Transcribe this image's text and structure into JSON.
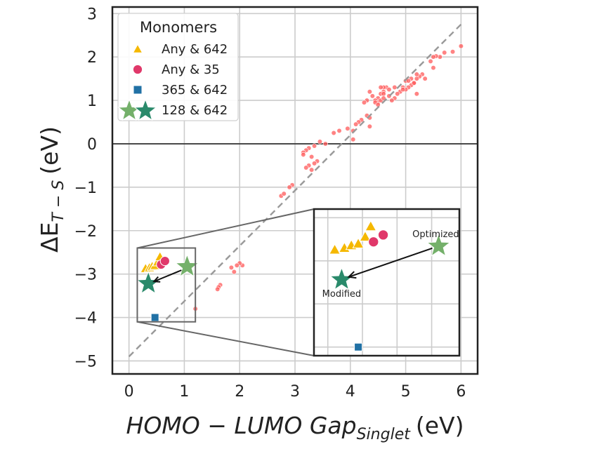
{
  "chart_data": {
    "type": "scatter",
    "title": "",
    "xlabel_main": "HOMO − LUMO Gap",
    "xlabel_sub": "Singlet",
    "xlabel_unit": "(eV)",
    "ylabel_main": "ΔE",
    "ylabel_sub": "T − S",
    "ylabel_unit": "(eV)",
    "xlim": [
      -0.3,
      6.3
    ],
    "ylim": [
      -5.3,
      3.15
    ],
    "xticks": [
      "0",
      "1",
      "2",
      "3",
      "4",
      "5",
      "6"
    ],
    "yticks": [
      "3",
      "2",
      "1",
      "0",
      "−1",
      "−2",
      "−3",
      "−4",
      "−5"
    ],
    "grid": true,
    "legend": {
      "title": "Monomers",
      "placement": "top-left",
      "entries": [
        {
          "label": "Any & 642",
          "marker": "triangle",
          "color": "#f5b800"
        },
        {
          "label": "Any & 35",
          "marker": "circle",
          "color": "#e0386a"
        },
        {
          "label": "365 & 642",
          "marker": "square",
          "color": "#2171a5"
        },
        {
          "label": "128 & 642",
          "marker": "star",
          "colors": [
            "#74b06a",
            "#2a8a6b"
          ]
        }
      ]
    },
    "reference_line": {
      "style": "dashed",
      "color": "#999999",
      "points": [
        [
          0,
          -4.9
        ],
        [
          6,
          2.75
        ]
      ]
    },
    "background_points": {
      "color": "#ff5a5a",
      "x": [
        6.0,
        5.85,
        5.7,
        5.62,
        5.55,
        5.5,
        5.45,
        5.5,
        5.3,
        5.35,
        5.25,
        5.2,
        5.15,
        5.1,
        5.2,
        5.05,
        5.0,
        4.95,
        4.9,
        5.0,
        5.1,
        5.15,
        5.2,
        4.85,
        4.8,
        4.75,
        4.7,
        4.65,
        4.6,
        4.55,
        4.5,
        4.45,
        4.5,
        4.55,
        4.6,
        4.4,
        4.35,
        4.3,
        4.25,
        4.55,
        4.6,
        4.7,
        4.8,
        4.95,
        5.05,
        4.45,
        4.5,
        4.6,
        4.3,
        4.35,
        4.2,
        4.15,
        4.1,
        4.05,
        3.95,
        3.8,
        3.7,
        4.05,
        4.35,
        3.55,
        3.45,
        3.35,
        3.25,
        3.2,
        3.15,
        3.3,
        3.4,
        3.35,
        3.25,
        3.2,
        3.3,
        3.15,
        2.95,
        2.9,
        2.75,
        2.8,
        2.05,
        2.0,
        1.95,
        1.9,
        1.65,
        1.62,
        1.6,
        1.85,
        1.2
      ],
      "y": [
        2.25,
        2.12,
        2.1,
        2.0,
        2.02,
        2.0,
        1.9,
        1.75,
        1.6,
        1.5,
        1.55,
        1.5,
        1.4,
        1.35,
        1.15,
        1.3,
        1.25,
        1.3,
        1.2,
        1.45,
        1.5,
        1.4,
        1.6,
        1.15,
        1.05,
        1.0,
        1.1,
        1.3,
        1.2,
        1.15,
        1.05,
        1.0,
        0.95,
        1.0,
        1.3,
        1.1,
        1.2,
        1.0,
        0.95,
        1.3,
        1.15,
        1.25,
        1.3,
        1.25,
        1.45,
        0.95,
        0.9,
        1.05,
        0.65,
        0.6,
        0.55,
        0.5,
        0.45,
        0.3,
        0.35,
        0.3,
        0.25,
        0.1,
        0.4,
        0.0,
        0.05,
        -0.05,
        -0.1,
        -0.15,
        -0.2,
        -0.3,
        -0.4,
        -0.45,
        -0.5,
        -0.55,
        -0.6,
        -0.25,
        -0.95,
        -1.0,
        -1.2,
        -1.15,
        -2.8,
        -2.75,
        -2.8,
        -2.95,
        -3.25,
        -3.3,
        -3.35,
        -2.85,
        -3.8
      ]
    },
    "series": [
      {
        "name": "Any & 642",
        "marker": "triangle",
        "color": "#f5b800",
        "x": [
          0.3,
          0.37,
          0.42,
          0.47,
          0.52,
          0.56
        ],
        "y": [
          -2.87,
          -2.85,
          -2.82,
          -2.8,
          -2.72,
          -2.6
        ]
      },
      {
        "name": "Any & 35",
        "marker": "circle",
        "color": "#e0386a",
        "x": [
          0.58,
          0.65
        ],
        "y": [
          -2.78,
          -2.7
        ]
      },
      {
        "name": "365 & 642",
        "marker": "square",
        "color": "#2171a5",
        "x": [
          0.47
        ],
        "y": [
          -4.0
        ]
      },
      {
        "name": "128 & 642 (Optimized)",
        "marker": "star",
        "color": "#74b06a",
        "x": [
          1.05
        ],
        "y": [
          -2.83
        ]
      },
      {
        "name": "128 & 642 (Modified)",
        "marker": "star",
        "color": "#2a8a6b",
        "x": [
          0.35
        ],
        "y": [
          -3.22
        ]
      }
    ],
    "inset": {
      "xlim": [
        0.15,
        1.2
      ],
      "ylim": [
        -4.1,
        -2.4
      ],
      "annotations": [
        {
          "text": "Optimized",
          "x": 1.05,
          "y": -2.83
        },
        {
          "text": "Modified",
          "x": 0.35,
          "y": -3.22
        }
      ]
    }
  }
}
